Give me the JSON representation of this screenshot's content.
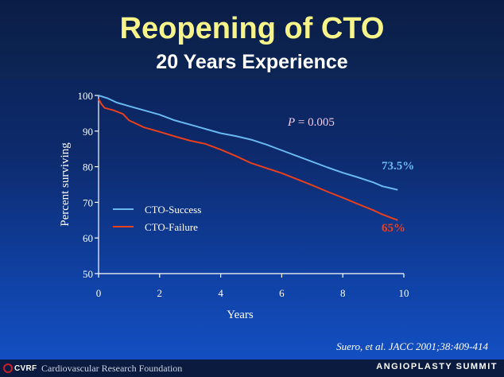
{
  "slide": {
    "title": "Reopening of CTO",
    "subtitle": "20 Years Experience",
    "citation": "Suero, et al. JACC 2001;38:409-414"
  },
  "footer": {
    "logo_text": "CVRF",
    "organization": "Cardiovascular Research Foundation",
    "event": "ANGIOPLASTY SUMMIT"
  },
  "colors": {
    "background_top": "#0b1f4e",
    "background_bottom": "#1452c8",
    "title": "#f7f58a",
    "success_series": "#6ab8f0",
    "failure_series": "#e8401c",
    "p_value_text": "#f0c8e8"
  },
  "chart_data": {
    "type": "line",
    "xlabel": "Years",
    "ylabel": "Percent surviving",
    "xlim": [
      0,
      10
    ],
    "ylim": [
      50,
      100
    ],
    "x_ticks": [
      0,
      2,
      4,
      6,
      8,
      10
    ],
    "y_ticks": [
      50,
      60,
      70,
      80,
      90,
      100
    ],
    "grid": false,
    "legend_position": "lower-left",
    "annotations": {
      "p_value_symbol": "P",
      "p_value": "= 0.005",
      "success_end_label": "73.5%",
      "failure_end_label": "65%"
    },
    "series": [
      {
        "name": "CTO-Success",
        "color": "#6ab8f0",
        "x": [
          0,
          0.3,
          0.6,
          1,
          1.5,
          2,
          2.5,
          3,
          3.5,
          4,
          4.5,
          5,
          5.5,
          6,
          6.5,
          7,
          7.5,
          8,
          8.5,
          9,
          9.3,
          9.6,
          9.8
        ],
        "y": [
          100,
          99.2,
          98,
          97,
          95.8,
          94.6,
          93,
          91.8,
          90.6,
          89.4,
          88.6,
          87.6,
          86.2,
          84.6,
          83,
          81.4,
          79.8,
          78.3,
          77,
          75.6,
          74.5,
          73.9,
          73.5
        ]
      },
      {
        "name": "CTO-Failure",
        "color": "#e8401c",
        "x": [
          0,
          0.1,
          0.2,
          0.5,
          0.8,
          1,
          1.5,
          2,
          2.5,
          3,
          3.5,
          4,
          4.5,
          5,
          5.5,
          6,
          6.5,
          7,
          7.5,
          8,
          8.5,
          9,
          9.3,
          9.6,
          9.8
        ],
        "y": [
          99,
          97.5,
          96.5,
          95.8,
          94.8,
          93,
          91,
          89.8,
          88.5,
          87.3,
          86.4,
          84.8,
          83,
          81,
          79.6,
          78.2,
          76.5,
          74.8,
          73,
          71.3,
          69.5,
          67.8,
          66.6,
          65.6,
          65
        ]
      }
    ]
  }
}
